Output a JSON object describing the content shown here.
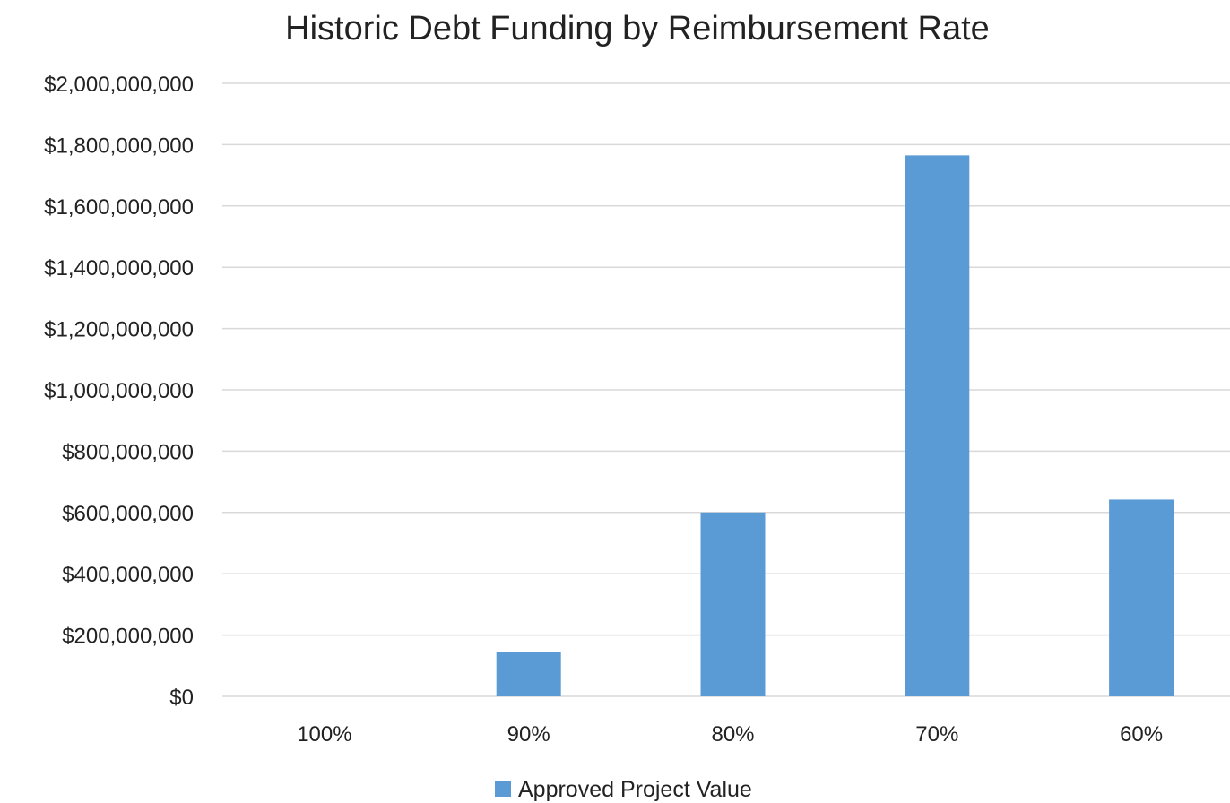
{
  "chart_data": {
    "type": "bar",
    "title": "Historic Debt Funding by Reimbursement Rate",
    "xlabel": "",
    "ylabel": "",
    "categories": [
      "100%",
      "90%",
      "80%",
      "70%",
      "60%"
    ],
    "series": [
      {
        "name": "Approved Project Value",
        "values": [
          0,
          145000000,
          600000000,
          1765000000,
          642000000
        ],
        "color": "#5b9bd5"
      }
    ],
    "ylim": [
      0,
      2000000000
    ],
    "yticks": [
      0,
      200000000,
      400000000,
      600000000,
      800000000,
      1000000000,
      1200000000,
      1400000000,
      1600000000,
      1800000000,
      2000000000
    ],
    "ytick_labels": [
      "$0",
      "$200,000,000",
      "$400,000,000",
      "$600,000,000",
      "$800,000,000",
      "$1,000,000,000",
      "$1,200,000,000",
      "$1,400,000,000",
      "$1,600,000,000",
      "$1,800,000,000",
      "$2,000,000,000"
    ],
    "grid": true,
    "legend_position": "bottom"
  }
}
